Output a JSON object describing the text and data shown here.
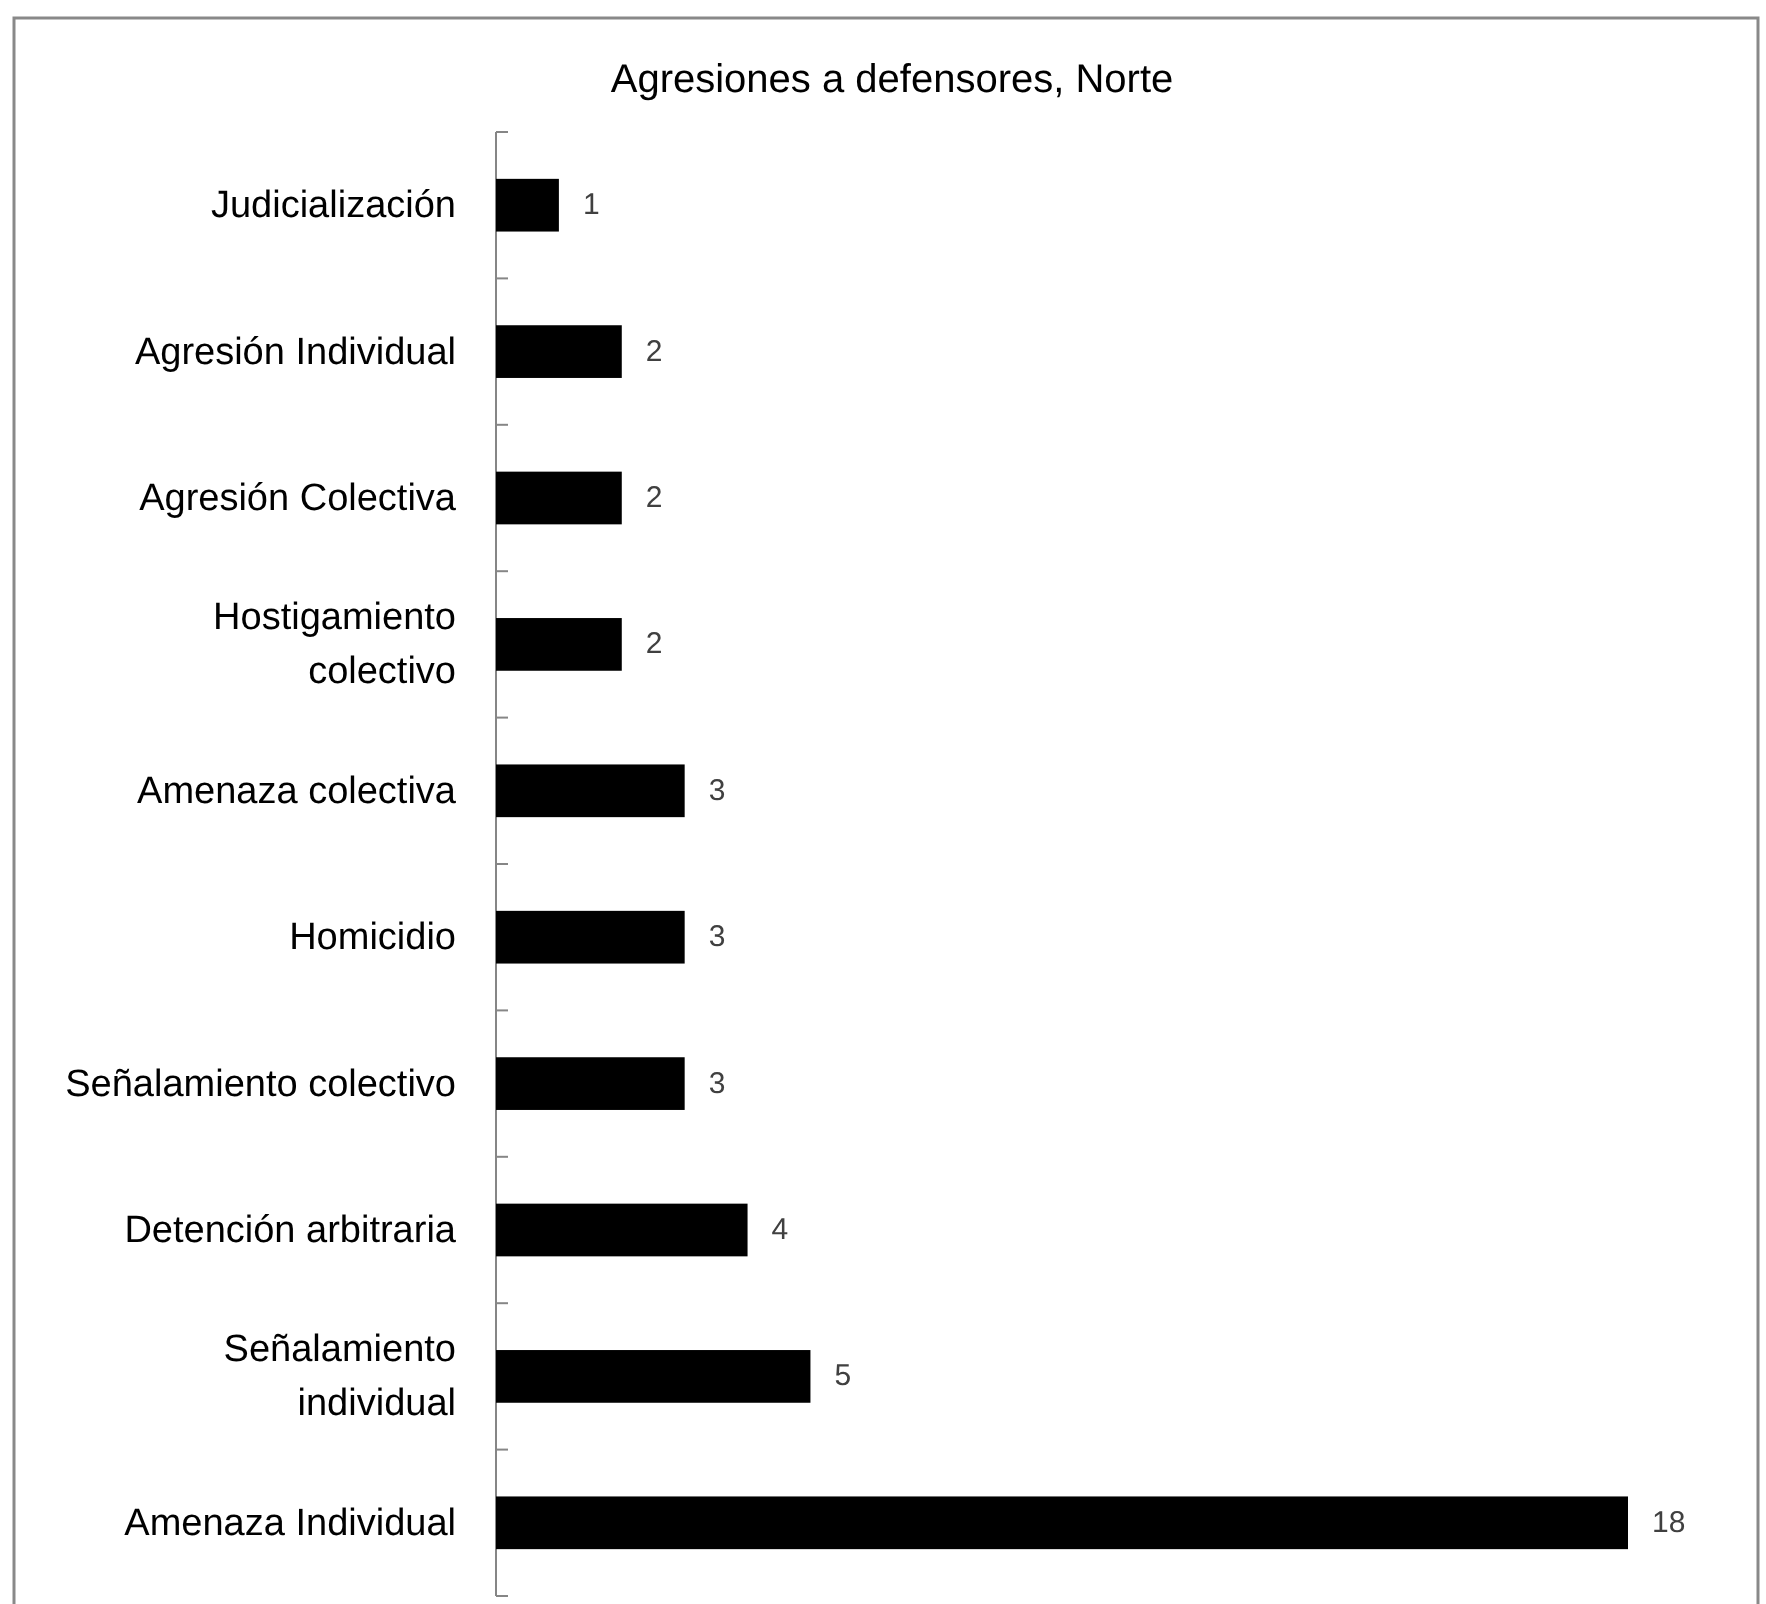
{
  "chart_data": {
    "type": "bar",
    "orientation": "horizontal",
    "title": "Agresiones a defensores, Norte",
    "categories": [
      "Judicialización",
      "Agresión Individual",
      "Agresión Colectiva",
      "Hostigamiento colectivo",
      "Amenaza colectiva",
      "Homicidio",
      "Señalamiento colectivo",
      "Detención arbitraria",
      "Señalamiento individual",
      "Amenaza Individual"
    ],
    "values": [
      1,
      2,
      2,
      2,
      3,
      3,
      3,
      4,
      5,
      18
    ],
    "color": "#000000",
    "data_labels": true,
    "tick_labels": "y"
  }
}
